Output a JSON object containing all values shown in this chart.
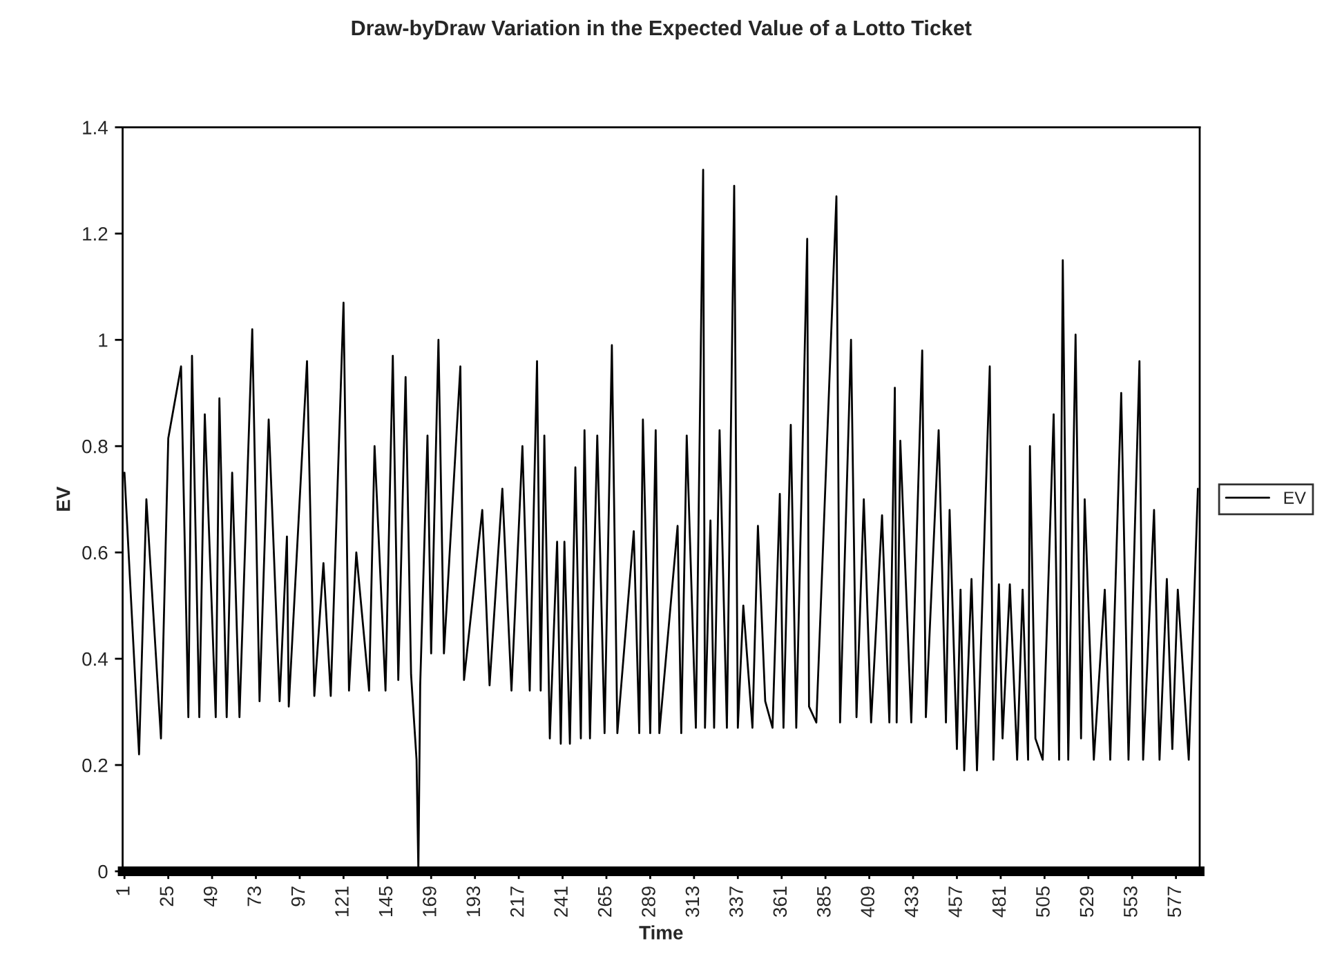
{
  "chart_data": {
    "type": "line",
    "title": "Draw-byDraw Variation in the Expected Value of a Lotto Ticket",
    "xlabel": "Time",
    "ylabel": "EV",
    "series": [
      {
        "name": "EV",
        "color": "#000000",
        "x": [
          1,
          9,
          13,
          21,
          25,
          32,
          36,
          38,
          42,
          45,
          51,
          53,
          57,
          60,
          64,
          71,
          75,
          80,
          86,
          90,
          91,
          101,
          105,
          110,
          114,
          121,
          124,
          128,
          135,
          138,
          144,
          148,
          151,
          155,
          158,
          161,
          162,
          163,
          167,
          169,
          173,
          176,
          185,
          187,
          197,
          201,
          208,
          213,
          219,
          223,
          227,
          229,
          231,
          234,
          238,
          240,
          242,
          245,
          248,
          251,
          253,
          256,
          260,
          264,
          268,
          271,
          280,
          283,
          285,
          289,
          292,
          294,
          304,
          306,
          309,
          314,
          318,
          319,
          322,
          324,
          327,
          331,
          335,
          337,
          340,
          345,
          348,
          352,
          356,
          360,
          362,
          366,
          369,
          375,
          376,
          380,
          391,
          393,
          399,
          402,
          406,
          410,
          416,
          420,
          423,
          424,
          426,
          432,
          438,
          440,
          447,
          451,
          453,
          457,
          459,
          461,
          465,
          468,
          475,
          477,
          480,
          482,
          486,
          490,
          493,
          496,
          497,
          500,
          504,
          510,
          513,
          515,
          518,
          522,
          525,
          527,
          532,
          538,
          541,
          547,
          551,
          557,
          559,
          565,
          568,
          572,
          575,
          578,
          584,
          589
        ],
        "values": [
          0.75,
          0.22,
          0.7,
          0.25,
          0.815,
          0.95,
          0.29,
          0.97,
          0.29,
          0.86,
          0.29,
          0.89,
          0.29,
          0.75,
          0.29,
          1.02,
          0.32,
          0.85,
          0.32,
          0.63,
          0.31,
          0.96,
          0.33,
          0.58,
          0.33,
          1.07,
          0.34,
          0.6,
          0.34,
          0.8,
          0.34,
          0.97,
          0.36,
          0.93,
          0.37,
          0.21,
          0,
          0.35,
          0.82,
          0.41,
          1.0,
          0.41,
          0.95,
          0.36,
          0.68,
          0.35,
          0.72,
          0.34,
          0.8,
          0.34,
          0.96,
          0.34,
          0.82,
          0.25,
          0.62,
          0.24,
          0.62,
          0.24,
          0.76,
          0.25,
          0.83,
          0.25,
          0.82,
          0.26,
          0.99,
          0.26,
          0.64,
          0.26,
          0.85,
          0.26,
          0.83,
          0.26,
          0.65,
          0.26,
          0.82,
          0.27,
          1.32,
          0.27,
          0.66,
          0.27,
          0.83,
          0.27,
          1.29,
          0.27,
          0.5,
          0.27,
          0.65,
          0.32,
          0.27,
          0.71,
          0.27,
          0.84,
          0.27,
          1.19,
          0.31,
          0.28,
          1.27,
          0.28,
          1.0,
          0.29,
          0.7,
          0.28,
          0.67,
          0.28,
          0.91,
          0.28,
          0.81,
          0.28,
          0.98,
          0.29,
          0.83,
          0.28,
          0.68,
          0.23,
          0.53,
          0.19,
          0.55,
          0.19,
          0.95,
          0.21,
          0.54,
          0.25,
          0.54,
          0.21,
          0.53,
          0.21,
          0.8,
          0.25,
          0.21,
          0.86,
          0.21,
          1.15,
          0.21,
          1.01,
          0.25,
          0.7,
          0.21,
          0.53,
          0.21,
          0.9,
          0.21,
          0.96,
          0.21,
          0.68,
          0.21,
          0.55,
          0.23,
          0.53,
          0.21,
          0.72
        ]
      }
    ],
    "xlim": [
      0,
      590
    ],
    "xticks": [
      1,
      25,
      49,
      73,
      97,
      121,
      145,
      169,
      193,
      217,
      241,
      265,
      289,
      313,
      337,
      361,
      385,
      409,
      433,
      457,
      481,
      505,
      529,
      553,
      577
    ],
    "ylim": [
      0,
      1.4
    ],
    "yticks": [
      0,
      {
        "value": 0.2,
        "label": "0.2"
      },
      {
        "value": 0.4,
        "label": "0.4"
      },
      {
        "value": 0.6,
        "label": "0.6"
      },
      {
        "value": 0.8,
        "label": "0.8"
      },
      1,
      {
        "value": 1.2,
        "label": "1.2"
      },
      {
        "value": 1.4,
        "label": "1.4"
      }
    ],
    "grid": false,
    "legend": "right",
    "marker": "none",
    "line_style": "solid"
  }
}
